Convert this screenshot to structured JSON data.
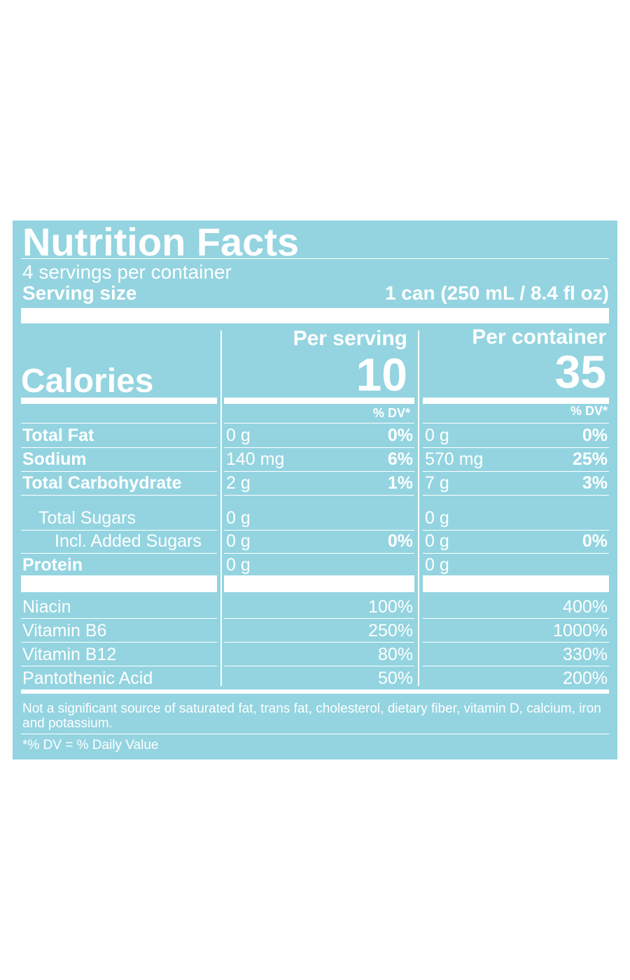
{
  "title": "Nutrition Facts",
  "servings": "4 servings per container",
  "serving_size": {
    "label": "Serving size",
    "value": "1 can (250 mL / 8.4 fl oz)"
  },
  "columns": [
    "Per serving",
    "Per container"
  ],
  "calories": {
    "label": "Calories",
    "values": [
      "10",
      "35"
    ]
  },
  "dv_header": [
    "% DV*",
    "% DV*"
  ],
  "nutrients": [
    {
      "name": "Total Fat",
      "bold": true,
      "indent": 0,
      "serving": [
        "0 g",
        "0%"
      ],
      "container": [
        "0 g",
        "0%"
      ]
    },
    {
      "name": "Sodium",
      "bold": true,
      "indent": 0,
      "serving": [
        "140 mg",
        "6%"
      ],
      "container": [
        "570 mg",
        "25%"
      ]
    },
    {
      "name": "Total Carbohydrate",
      "bold": true,
      "indent": 0,
      "serving": [
        "2 g",
        "1%"
      ],
      "container": [
        "7 g",
        "3%"
      ]
    },
    {
      "name": "Total Sugars",
      "bold": false,
      "indent": 1,
      "serving": [
        "0 g"
      ],
      "container": [
        "0 g"
      ]
    },
    {
      "name": "Incl. Added Sugars",
      "bold": false,
      "indent": 2,
      "serving": [
        "0 g",
        "0%"
      ],
      "container": [
        "0 g",
        "0%"
      ]
    },
    {
      "name": "Protein",
      "bold": true,
      "indent": 0,
      "serving": [
        "0 g"
      ],
      "container": [
        "0 g"
      ]
    }
  ],
  "vitamins": [
    {
      "name": "Niacin",
      "serving": "100%",
      "container": "400%"
    },
    {
      "name": "Vitamin B6",
      "serving": "250%",
      "container": "1000%"
    },
    {
      "name": "Vitamin B12",
      "serving": "80%",
      "container": "330%"
    },
    {
      "name": "Pantothenic Acid",
      "serving": "50%",
      "container": "200%"
    }
  ],
  "footnote": "Not a significant source of saturated fat, trans fat, cholesterol, dietary fiber, vitamin D, calcium, iron and potassium.",
  "dv_note": "*% DV = % Daily Value"
}
